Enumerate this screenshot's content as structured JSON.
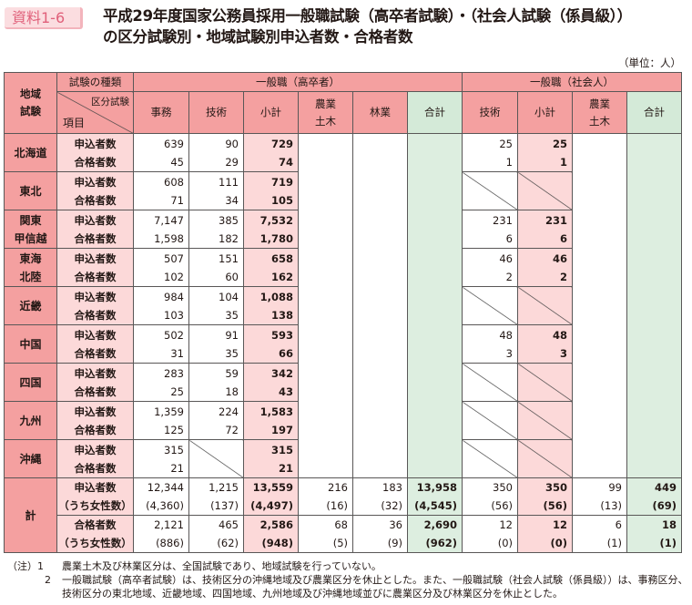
{
  "header": {
    "badge": "資料1-6",
    "title_line1": "平成29年度国家公務員採用一般職試験（高卒者試験）・（社会人試験（係員級））",
    "title_line2": "の区分試験別・地域試験別申込者数・合格者数",
    "unit": "（単位：人）"
  },
  "table": {
    "h_region": "地域\n試験",
    "h_type": "試験の種類",
    "h_kubun": "区分試験",
    "h_item": "項目",
    "group_koso": "一般職（高卒者）",
    "group_social": "一般職（社会人）",
    "cols_koso": [
      "事務",
      "技術",
      "小計",
      "農業\n土木",
      "林業",
      "合計"
    ],
    "cols_social": [
      "技術",
      "小計",
      "農業\n土木",
      "合計"
    ],
    "items": [
      "申込者数",
      "合格者数"
    ],
    "regions": [
      {
        "name": "北海道",
        "koso": [
          [
            "639",
            "45"
          ],
          [
            "90",
            "29"
          ],
          [
            "729",
            "74"
          ]
        ],
        "social": [
          [
            "25",
            "1"
          ],
          [
            "25",
            "1"
          ]
        ]
      },
      {
        "name": "東北",
        "koso": [
          [
            "608",
            "71"
          ],
          [
            "111",
            "34"
          ],
          [
            "719",
            "105"
          ]
        ],
        "social": null
      },
      {
        "name": "関東\n甲信越",
        "koso": [
          [
            "7,147",
            "1,598"
          ],
          [
            "385",
            "182"
          ],
          [
            "7,532",
            "1,780"
          ]
        ],
        "social": [
          [
            "231",
            "6"
          ],
          [
            "231",
            "6"
          ]
        ]
      },
      {
        "name": "東海\n北陸",
        "koso": [
          [
            "507",
            "102"
          ],
          [
            "151",
            "60"
          ],
          [
            "658",
            "162"
          ]
        ],
        "social": [
          [
            "46",
            "2"
          ],
          [
            "46",
            "2"
          ]
        ]
      },
      {
        "name": "近畿",
        "koso": [
          [
            "984",
            "103"
          ],
          [
            "104",
            "35"
          ],
          [
            "1,088",
            "138"
          ]
        ],
        "social": null
      },
      {
        "name": "中国",
        "koso": [
          [
            "502",
            "31"
          ],
          [
            "91",
            "35"
          ],
          [
            "593",
            "66"
          ]
        ],
        "social": [
          [
            "48",
            "3"
          ],
          [
            "48",
            "3"
          ]
        ]
      },
      {
        "name": "四国",
        "koso": [
          [
            "283",
            "25"
          ],
          [
            "59",
            "18"
          ],
          [
            "342",
            "43"
          ]
        ],
        "social": null
      },
      {
        "name": "九州",
        "koso": [
          [
            "1,359",
            "125"
          ],
          [
            "224",
            "72"
          ],
          [
            "1,583",
            "197"
          ]
        ],
        "social": null
      },
      {
        "name": "沖縄",
        "koso": [
          [
            "315",
            "21"
          ],
          null,
          [
            "315",
            "21"
          ]
        ],
        "social": null
      }
    ],
    "total": {
      "name": "計",
      "rows": [
        {
          "label": "申込者数",
          "sub": "（うち女性数）",
          "values": [
            "12,344",
            "1,215",
            "13,559",
            "216",
            "183",
            "13,958",
            "350",
            "350",
            "99",
            "449"
          ],
          "subs": [
            "(4,360)",
            "(137)",
            "(4,497)",
            "(16)",
            "(32)",
            "(4,545)",
            "(56)",
            "(56)",
            "(13)",
            "(69)"
          ]
        },
        {
          "label": "合格者数",
          "sub": "（うち女性数）",
          "values": [
            "2,121",
            "465",
            "2,586",
            "68",
            "36",
            "2,690",
            "12",
            "12",
            "6",
            "18"
          ],
          "subs": [
            "(886)",
            "(62)",
            "(948)",
            "(5)",
            "(9)",
            "(962)",
            "(0)",
            "(0)",
            "(1)",
            "(1)"
          ]
        }
      ]
    }
  },
  "notes": [
    {
      "key": "（注）1",
      "text": "農業土木及び林業区分は、全国試験であり、地域試験を行っていない。"
    },
    {
      "key": "2",
      "text": "一般職試験（高卒者試験）は、技術区分の沖縄地域及び農業区分を休止とした。また、一般職試験（社会人試験（係員級））は、事務区分、技術区分の東北地域、近畿地域、四国地域、九州地域及び沖縄地域並びに農業区分及び林業区分を休止とした。"
    }
  ]
}
